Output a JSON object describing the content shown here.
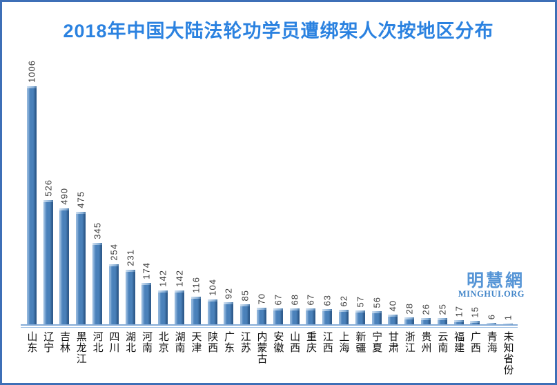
{
  "title": "2018年中国大陆法轮功学员遭绑架人次按地区分布",
  "chart_data": {
    "type": "bar",
    "title": "2018年中国大陆法轮功学员遭绑架人次按地区分布",
    "categories": [
      "山东",
      "辽宁",
      "吉林",
      "黑龙江",
      "河北",
      "四川",
      "湖北",
      "河南",
      "北京",
      "湖南",
      "天津",
      "陕西",
      "广东",
      "江苏",
      "内蒙古",
      "安徽",
      "山西",
      "重庆",
      "江西",
      "上海",
      "新疆",
      "宁夏",
      "甘肃",
      "浙江",
      "贵州",
      "云南",
      "福建",
      "广西",
      "青海",
      "未知省份"
    ],
    "values": [
      1006,
      526,
      490,
      475,
      345,
      254,
      231,
      174,
      142,
      142,
      116,
      104,
      92,
      85,
      70,
      67,
      68,
      67,
      63,
      62,
      57,
      56,
      40,
      28,
      26,
      25,
      17,
      15,
      6,
      1
    ],
    "xlabel": "",
    "ylabel": "",
    "ylim": [
      0,
      1006
    ],
    "grid": false,
    "legend": "none",
    "value_labels": "rotated-90-above-bars",
    "category_labels": "vertical-upright"
  },
  "watermark": {
    "line1": "明慧網",
    "line2": "MINGHUI.ORG"
  },
  "colors": {
    "title": "#2b82e0",
    "border": "#3e6fb7",
    "axis": "#84abd7",
    "bar_main": "#4a81ba",
    "bar_highlight": "#8fb4da",
    "bar_shadow": "#2f5c8e",
    "value_label": "#3d3d3d",
    "category_label": "#111111"
  }
}
